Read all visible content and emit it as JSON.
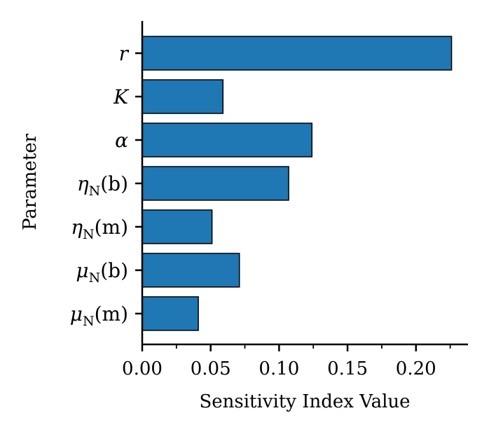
{
  "chart_data": {
    "type": "bar",
    "orientation": "horizontal",
    "categories": [
      "r",
      "K",
      "α",
      "ηN(b)",
      "ηN(m)",
      "μN(b)",
      "μN(m)"
    ],
    "category_labels": [
      {
        "main": "r",
        "sub": "",
        "arg": ""
      },
      {
        "main": "K",
        "sub": "",
        "arg": ""
      },
      {
        "main": "α",
        "sub": "",
        "arg": ""
      },
      {
        "main": "η",
        "sub": "N",
        "arg": "(b)"
      },
      {
        "main": "η",
        "sub": "N",
        "arg": "(m)"
      },
      {
        "main": "μ",
        "sub": "N",
        "arg": "(b)"
      },
      {
        "main": "μ",
        "sub": "N",
        "arg": "(m)"
      }
    ],
    "values": [
      0.226,
      0.059,
      0.124,
      0.107,
      0.051,
      0.071,
      0.041
    ],
    "xlabel": "Sensitivity Index Value",
    "ylabel": "Parameter",
    "xlim": [
      0,
      0.238
    ],
    "xticks": [
      0.0,
      0.05,
      0.1,
      0.15,
      0.2
    ],
    "xtick_labels": [
      "0.00",
      "0.05",
      "0.10",
      "0.15",
      "0.20"
    ],
    "xminor_ticks": [
      0.025,
      0.075,
      0.125,
      0.175,
      0.225
    ],
    "bar_color": "#1f77b4",
    "edge_color": "#000000",
    "grid": false
  }
}
